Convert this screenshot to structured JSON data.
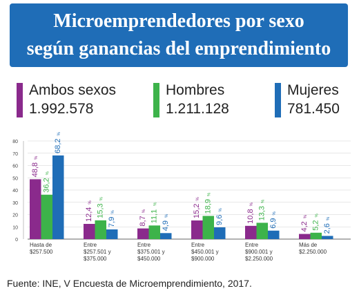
{
  "title": {
    "line1": "Microemprendedores por sexo",
    "line2": "según ganancias del emprendimiento"
  },
  "colors": {
    "ambos": "#8a2a8c",
    "hombres": "#3db34a",
    "mujeres": "#1f6db7",
    "title_bg": "#1f6db7"
  },
  "legend": [
    {
      "name": "Ambos sexos",
      "total": "1.992.578"
    },
    {
      "name": "Hombres",
      "total": "1.211.128"
    },
    {
      "name": "Mujeres",
      "total": "781.450"
    }
  ],
  "source": "Fuente: INE, V Encuesta de Microemprendimiento, 2017.",
  "chart_data": {
    "type": "bar",
    "categories": [
      [
        "Hasta de",
        "$257.500"
      ],
      [
        "Entre",
        "$257.501 y",
        "$375.000"
      ],
      [
        "Entre",
        "$375.001 y",
        "$450.000"
      ],
      [
        "Entre",
        "$450.001 y",
        "$900.000"
      ],
      [
        "Entre",
        "$900.001 y",
        "$2.250.000"
      ],
      [
        "Más de",
        "$2.250.000"
      ]
    ],
    "series": [
      {
        "name": "Ambos sexos",
        "values": [
          48.8,
          12.4,
          8.7,
          15.2,
          10.8,
          4.2
        ],
        "labels": [
          "48,8",
          "12,4",
          "8,7",
          "15,2",
          "10,8",
          "4,2"
        ]
      },
      {
        "name": "Hombres",
        "values": [
          36.2,
          15.3,
          11.1,
          18.9,
          13.3,
          5.2
        ],
        "labels": [
          "36,2",
          "15,3",
          "11,1",
          "18,9",
          "13,3",
          "5,2"
        ]
      },
      {
        "name": "Mujeres",
        "values": [
          68.2,
          7.9,
          4.9,
          9.6,
          6.9,
          2.6
        ],
        "labels": [
          "68,2",
          "7,9",
          "4,9",
          "9,6",
          "6,9",
          "2,6"
        ]
      }
    ],
    "unit_label": "%",
    "yticks": [
      0,
      10,
      20,
      30,
      40,
      50,
      60,
      70,
      80
    ],
    "ylim": [
      0,
      80
    ],
    "grid": true
  }
}
